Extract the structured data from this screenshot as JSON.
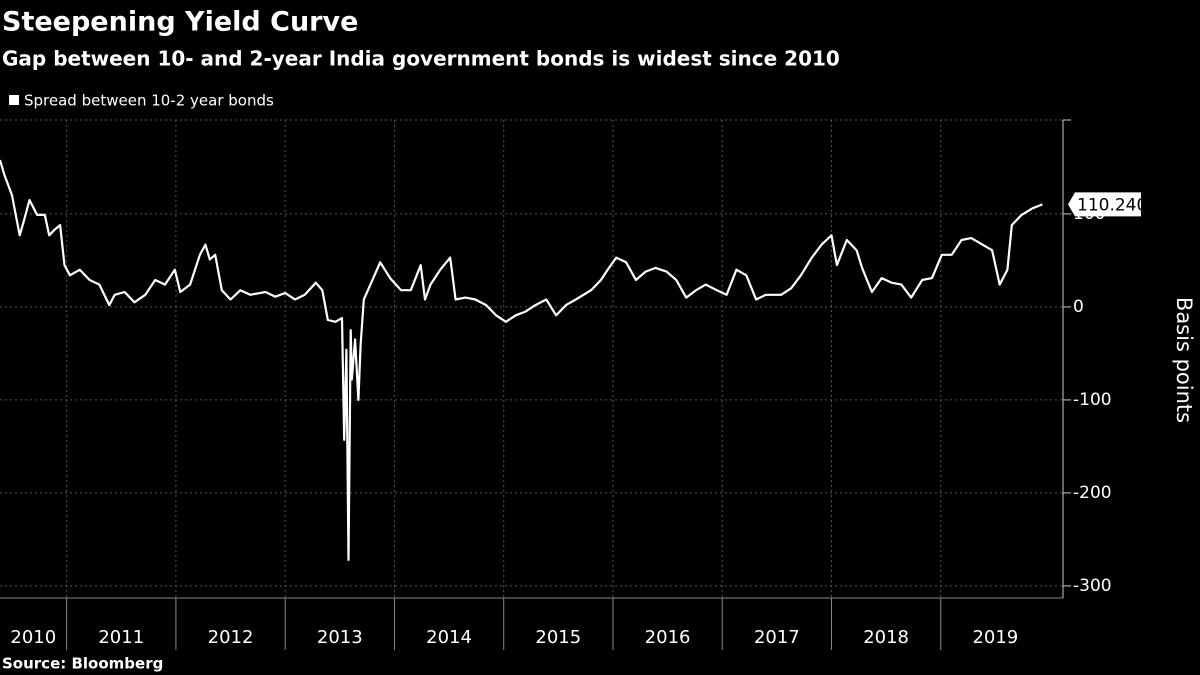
{
  "chart_data": {
    "type": "line",
    "title": "Steepening Yield Curve",
    "subtitle": "Gap between 10- and 2-year India government bonds is widest since 2010",
    "y_axis_label": "Basis points",
    "source": "Source: Bloomberg",
    "grid": true,
    "xlim": [
      2010.39,
      2020.0
    ],
    "xticks": [
      2010,
      2011,
      2012,
      2013,
      2014,
      2015,
      2016,
      2017,
      2018,
      2019
    ],
    "ylim": [
      -313,
      201
    ],
    "yticks": [
      -300,
      -200,
      -100,
      0,
      100
    ],
    "x": [
      2010.39,
      2010.43,
      2010.5,
      2010.57,
      2010.61,
      2010.66,
      2010.73,
      2010.8,
      2010.84,
      2010.89,
      2010.94,
      2010.98,
      2011.03,
      2011.12,
      2011.21,
      2011.3,
      2011.39,
      2011.44,
      2011.53,
      2011.62,
      2011.72,
      2011.81,
      2011.9,
      2011.99,
      2012.04,
      2012.13,
      2012.22,
      2012.27,
      2012.31,
      2012.36,
      2012.42,
      2012.5,
      2012.59,
      2012.68,
      2012.82,
      2012.91,
      2013.0,
      2013.09,
      2013.18,
      2013.28,
      2013.34,
      2013.39,
      2013.46,
      2013.52,
      2013.54,
      2013.56,
      2013.58,
      2013.6,
      2013.61,
      2013.64,
      2013.67,
      2013.69,
      2013.72,
      2013.78,
      2013.87,
      2013.96,
      2014.06,
      2014.15,
      2014.24,
      2014.28,
      2014.33,
      2014.42,
      2014.51,
      2014.56,
      2014.65,
      2014.74,
      2014.84,
      2014.93,
      2015.02,
      2015.11,
      2015.2,
      2015.29,
      2015.39,
      2015.48,
      2015.57,
      2015.66,
      2015.8,
      2015.89,
      2015.94,
      2016.03,
      2016.12,
      2016.21,
      2016.3,
      2016.39,
      2016.49,
      2016.58,
      2016.67,
      2016.76,
      2016.85,
      2016.95,
      2017.04,
      2017.13,
      2017.22,
      2017.31,
      2017.4,
      2017.54,
      2017.63,
      2017.72,
      2017.82,
      2017.91,
      2018.0,
      2018.05,
      2018.14,
      2018.23,
      2018.28,
      2018.37,
      2018.46,
      2018.55,
      2018.64,
      2018.73,
      2018.83,
      2018.92,
      2019.01,
      2019.1,
      2019.19,
      2019.28,
      2019.38,
      2019.47,
      2019.54,
      2019.61,
      2019.65,
      2019.74,
      2019.84,
      2019.93
    ],
    "series": [
      {
        "name": "Spread between 10-2 year bonds",
        "color": "#ffffff",
        "values": [
          158,
          142,
          120,
          77,
          93,
          115,
          99,
          99,
          77,
          83,
          88,
          45,
          34,
          40,
          29,
          24,
          2,
          13,
          16,
          5,
          13,
          29,
          24,
          40,
          16,
          24,
          56,
          67,
          51,
          56,
          18,
          8,
          18,
          13,
          16,
          11,
          15,
          8,
          13,
          26,
          18,
          -14,
          -16,
          -12,
          -143,
          -46,
          -272,
          -25,
          -78,
          -35,
          -100,
          -41,
          8,
          24,
          48,
          31,
          18,
          18,
          45,
          8,
          24,
          40,
          53,
          8,
          10,
          8,
          2,
          -9,
          -16,
          -9,
          -5,
          2,
          8,
          -9,
          2,
          8,
          18,
          29,
          38,
          53,
          48,
          29,
          38,
          42,
          38,
          29,
          10,
          18,
          24,
          18,
          13,
          40,
          34,
          8,
          13,
          13,
          20,
          34,
          53,
          67,
          77,
          45,
          72,
          61,
          42,
          16,
          31,
          26,
          24,
          10,
          29,
          31,
          56,
          56,
          72,
          74,
          67,
          61,
          24,
          40,
          88,
          99,
          106,
          110.2407
        ]
      }
    ]
  }
}
